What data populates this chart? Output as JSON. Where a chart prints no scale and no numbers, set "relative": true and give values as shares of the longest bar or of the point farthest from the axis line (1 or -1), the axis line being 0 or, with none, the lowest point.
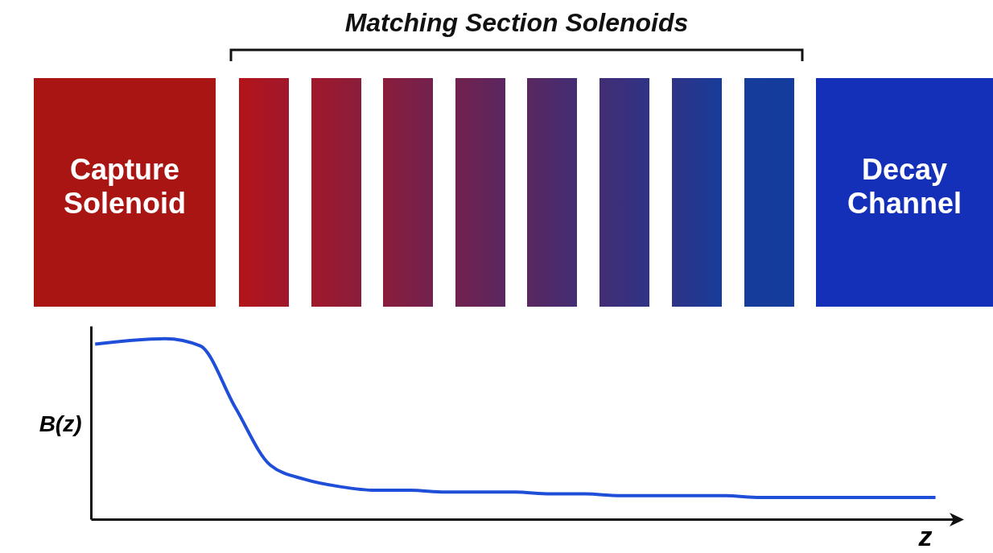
{
  "chart_data": {
    "type": "line",
    "relative": true,
    "xlabel": "z",
    "ylabel": "B(z)",
    "annotations": [
      "Matching Section Solenoids",
      "Capture Solenoid",
      "Decay Channel"
    ],
    "categories": [
      null,
      null,
      null,
      null,
      null,
      null,
      null,
      null,
      null,
      null,
      null,
      null,
      null,
      null,
      null,
      null,
      null,
      null,
      null,
      null,
      null,
      null,
      null,
      null,
      null
    ],
    "series": [
      {
        "color": "#1f4fd8",
        "values": [
          0.97,
          0.99,
          1,
          0.96,
          0.62,
          0.3,
          0.22,
          0.18,
          0.16,
          0.16,
          0.15,
          0.15,
          0.15,
          0.14,
          0.14,
          0.13,
          0.13,
          0.13,
          0.13,
          0.12,
          0.12,
          0.12,
          0.12,
          0.12,
          0.12
        ]
      }
    ],
    "grid": false,
    "marker": "none",
    "line_style": "solid"
  }
}
